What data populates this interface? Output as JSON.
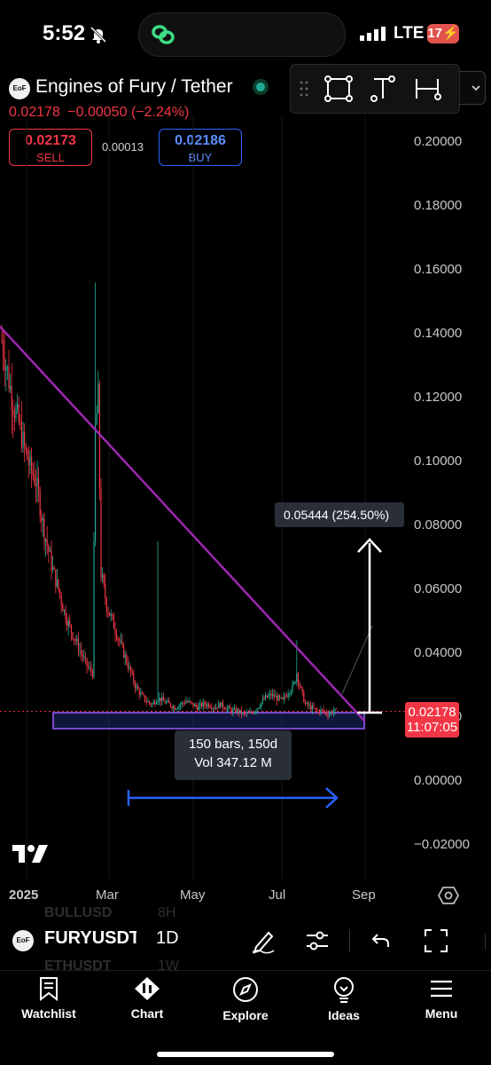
{
  "status_bar": {
    "time": "5:52",
    "network": "LTE",
    "battery": "17"
  },
  "symbol": {
    "logo_text": "EoF",
    "title": "Engines of Fury / Tether",
    "last_price": "0.02178",
    "change": "−0.00050",
    "change_pct": "(−2.24%)",
    "sell_price": "0.02173",
    "sell_label": "SELL",
    "spread": "0.00013",
    "buy_price": "0.02186",
    "buy_label": "BUY"
  },
  "chart_data": {
    "type": "candlestick",
    "y_ticks": [
      "0.20000",
      "0.18000",
      "0.16000",
      "0.14000",
      "0.12000",
      "0.10000",
      "0.08000",
      "0.06000",
      "0.04000",
      "0.02000",
      "0.00000",
      "−0.02000"
    ],
    "x_ticks": [
      "2025",
      "Mar",
      "May",
      "Jul",
      "Sep"
    ],
    "ylim": [
      -0.02,
      0.2
    ],
    "close_points": [
      [
        0,
        0.138
      ],
      [
        4,
        0.128
      ],
      [
        8,
        0.118
      ],
      [
        12,
        0.112
      ],
      [
        16,
        0.104
      ],
      [
        20,
        0.098
      ],
      [
        24,
        0.094
      ],
      [
        27,
        0.086
      ],
      [
        30,
        0.078
      ],
      [
        33,
        0.072
      ],
      [
        36,
        0.066
      ],
      [
        40,
        0.06
      ],
      [
        44,
        0.053
      ],
      [
        48,
        0.048
      ],
      [
        52,
        0.044
      ],
      [
        56,
        0.04
      ],
      [
        60,
        0.036
      ],
      [
        64,
        0.034
      ],
      [
        66,
        0.11
      ],
      [
        68,
        0.12
      ],
      [
        70,
        0.065
      ],
      [
        74,
        0.055
      ],
      [
        78,
        0.05
      ],
      [
        82,
        0.045
      ],
      [
        86,
        0.04
      ],
      [
        90,
        0.035
      ],
      [
        94,
        0.03
      ],
      [
        98,
        0.027
      ],
      [
        102,
        0.025
      ],
      [
        106,
        0.024
      ],
      [
        110,
        0.026
      ],
      [
        114,
        0.025
      ],
      [
        118,
        0.024
      ],
      [
        122,
        0.023
      ],
      [
        126,
        0.024
      ],
      [
        130,
        0.025
      ],
      [
        134,
        0.024
      ],
      [
        138,
        0.023
      ],
      [
        142,
        0.024
      ],
      [
        146,
        0.024
      ],
      [
        150,
        0.023
      ],
      [
        154,
        0.024
      ],
      [
        158,
        0.023
      ],
      [
        162,
        0.022
      ],
      [
        166,
        0.022
      ],
      [
        170,
        0.021
      ],
      [
        174,
        0.021
      ],
      [
        178,
        0.022
      ],
      [
        182,
        0.024
      ],
      [
        186,
        0.026
      ],
      [
        190,
        0.027
      ],
      [
        194,
        0.026
      ],
      [
        198,
        0.025
      ],
      [
        202,
        0.028
      ],
      [
        206,
        0.03
      ],
      [
        208,
        0.034
      ],
      [
        210,
        0.03
      ],
      [
        214,
        0.024
      ],
      [
        218,
        0.023
      ],
      [
        222,
        0.022
      ],
      [
        226,
        0.022
      ],
      [
        230,
        0.021
      ],
      [
        234,
        0.022
      ],
      [
        236,
        0.0218
      ]
    ],
    "spike_highs": [
      [
        66,
        0.156
      ],
      [
        110,
        0.075
      ],
      [
        208,
        0.044
      ]
    ],
    "last_price_badge": "0.02178",
    "countdown": "11:07:05",
    "measure_label": "0.05444 (254.50%)",
    "range_bars": "150 bars, 150d",
    "range_volume": "Vol 347.12 M"
  },
  "toolbar": {
    "ghost_symbol_1": "BULLUSD",
    "ghost_interval_1": "8H",
    "symbol": "FURYUSDT",
    "interval": "1D",
    "ghost_symbol_2": "ETHUSDT",
    "ghost_interval_2": "1W"
  },
  "nav": [
    {
      "label": "Watchlist",
      "icon": "bookmark-icon"
    },
    {
      "label": "Chart",
      "icon": "chart-icon"
    },
    {
      "label": "Explore",
      "icon": "compass-icon"
    },
    {
      "label": "Ideas",
      "icon": "lightbulb-icon"
    },
    {
      "label": "Menu",
      "icon": "menu-icon"
    }
  ]
}
